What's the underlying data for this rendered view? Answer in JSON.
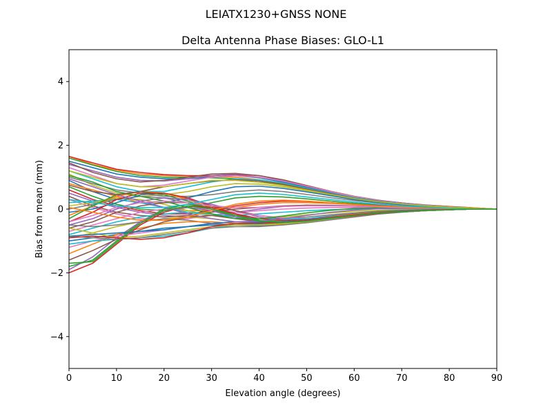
{
  "chart_data": {
    "type": "line",
    "suptitle": "LEIATX1230+GNSS NONE",
    "title": "Delta Antenna Phase Biases: GLO-L1",
    "xlabel": "Elevation angle (degrees)",
    "ylabel": "Bias from mean (mm)",
    "xlim": [
      0,
      90
    ],
    "ylim": [
      -5,
      5
    ],
    "xticks": [
      0,
      10,
      20,
      30,
      40,
      50,
      60,
      70,
      80,
      90
    ],
    "yticks": [
      -4,
      -2,
      0,
      2,
      4
    ],
    "grid": false,
    "legend": "none",
    "x": [
      0,
      5,
      10,
      15,
      20,
      25,
      30,
      35,
      40,
      45,
      50,
      55,
      60,
      65,
      70,
      75,
      80,
      85,
      90
    ],
    "series": [
      {
        "color": "#ff7f0e",
        "values": [
          1.65,
          1.4,
          1.22,
          1.1,
          1.05,
          1.04,
          1.02,
          1.0,
          0.92,
          0.8,
          0.65,
          0.5,
          0.35,
          0.25,
          0.18,
          0.12,
          0.08,
          0.04,
          0.0
        ]
      },
      {
        "color": "#d62728",
        "values": [
          1.65,
          1.45,
          1.25,
          1.15,
          1.08,
          1.05,
          1.05,
          1.08,
          1.0,
          0.85,
          0.68,
          0.52,
          0.38,
          0.27,
          0.19,
          0.13,
          0.08,
          0.04,
          0.0
        ]
      },
      {
        "color": "#2ca02c",
        "values": [
          1.6,
          1.38,
          1.18,
          1.05,
          1.0,
          1.0,
          0.98,
          0.95,
          0.88,
          0.75,
          0.6,
          0.46,
          0.33,
          0.24,
          0.17,
          0.11,
          0.07,
          0.03,
          0.0
        ]
      },
      {
        "color": "#1f77b4",
        "values": [
          1.5,
          1.3,
          1.1,
          1.0,
          0.95,
          0.95,
          1.0,
          1.05,
          0.98,
          0.85,
          0.7,
          0.52,
          0.36,
          0.26,
          0.18,
          0.12,
          0.07,
          0.03,
          0.0
        ]
      },
      {
        "color": "#9467bd",
        "values": [
          1.4,
          1.2,
          1.0,
          0.9,
          0.88,
          0.95,
          1.05,
          1.1,
          1.05,
          0.9,
          0.72,
          0.55,
          0.38,
          0.27,
          0.19,
          0.12,
          0.07,
          0.03,
          0.0
        ]
      },
      {
        "color": "#8c564b",
        "values": [
          1.45,
          1.15,
          0.95,
          0.85,
          0.9,
          1.0,
          1.1,
          1.12,
          1.05,
          0.92,
          0.74,
          0.56,
          0.4,
          0.28,
          0.19,
          0.12,
          0.07,
          0.03,
          0.0
        ]
      },
      {
        "color": "#e377c2",
        "values": [
          1.3,
          1.05,
          0.8,
          0.7,
          0.75,
          0.88,
          1.0,
          1.05,
          1.0,
          0.88,
          0.72,
          0.55,
          0.39,
          0.27,
          0.18,
          0.12,
          0.07,
          0.03,
          0.0
        ]
      },
      {
        "color": "#17becf",
        "values": [
          1.2,
          0.95,
          0.7,
          0.55,
          0.55,
          0.7,
          0.85,
          0.95,
          0.92,
          0.82,
          0.66,
          0.5,
          0.36,
          0.25,
          0.17,
          0.11,
          0.06,
          0.03,
          0.0
        ]
      },
      {
        "color": "#bcbd22",
        "values": [
          1.1,
          0.75,
          0.5,
          0.4,
          0.45,
          0.55,
          0.7,
          0.8,
          0.78,
          0.7,
          0.58,
          0.45,
          0.32,
          0.23,
          0.16,
          0.1,
          0.06,
          0.03,
          0.0
        ]
      },
      {
        "color": "#7f7f7f",
        "values": [
          1.0,
          0.8,
          0.6,
          0.5,
          0.4,
          0.4,
          0.45,
          0.55,
          0.6,
          0.55,
          0.46,
          0.36,
          0.27,
          0.19,
          0.13,
          0.08,
          0.05,
          0.02,
          0.0
        ]
      },
      {
        "color": "#1f77b4",
        "values": [
          0.9,
          0.55,
          0.3,
          0.2,
          0.2,
          0.35,
          0.55,
          0.7,
          0.72,
          0.65,
          0.54,
          0.42,
          0.3,
          0.21,
          0.14,
          0.09,
          0.05,
          0.02,
          0.0
        ]
      },
      {
        "color": "#ff7f0e",
        "values": [
          0.8,
          0.6,
          0.4,
          0.2,
          0.05,
          -0.05,
          -0.05,
          0.05,
          0.15,
          0.2,
          0.2,
          0.18,
          0.14,
          0.1,
          0.07,
          0.05,
          0.03,
          0.01,
          0.0
        ]
      },
      {
        "color": "#2ca02c",
        "values": [
          0.7,
          0.4,
          0.15,
          0.0,
          -0.05,
          0.05,
          0.2,
          0.35,
          0.4,
          0.38,
          0.32,
          0.25,
          0.18,
          0.13,
          0.09,
          0.06,
          0.03,
          0.01,
          0.0
        ]
      },
      {
        "color": "#d62728",
        "values": [
          0.6,
          0.3,
          0.1,
          -0.05,
          -0.15,
          -0.15,
          -0.05,
          0.1,
          0.2,
          0.25,
          0.24,
          0.2,
          0.15,
          0.11,
          0.08,
          0.05,
          0.03,
          0.01,
          0.0
        ]
      },
      {
        "color": "#9467bd",
        "values": [
          0.5,
          0.25,
          0.05,
          -0.1,
          -0.2,
          -0.25,
          -0.2,
          -0.1,
          0.0,
          0.08,
          0.12,
          0.12,
          0.1,
          0.08,
          0.06,
          0.04,
          0.02,
          0.01,
          0.0
        ]
      },
      {
        "color": "#8c564b",
        "values": [
          0.4,
          0.1,
          -0.1,
          -0.2,
          -0.25,
          -0.2,
          -0.1,
          0.0,
          0.05,
          0.1,
          0.12,
          0.11,
          0.09,
          0.07,
          0.05,
          0.03,
          0.02,
          0.01,
          0.0
        ]
      },
      {
        "color": "#e377c2",
        "values": [
          0.3,
          0.05,
          -0.15,
          -0.3,
          -0.35,
          -0.3,
          -0.2,
          -0.1,
          -0.05,
          0.0,
          0.03,
          0.05,
          0.05,
          0.04,
          0.03,
          0.02,
          0.01,
          0.0,
          0.0
        ]
      },
      {
        "color": "#17becf",
        "values": [
          0.2,
          0.25,
          0.3,
          0.2,
          0.05,
          -0.1,
          -0.2,
          -0.2,
          -0.15,
          -0.1,
          -0.05,
          -0.02,
          0.0,
          0.01,
          0.01,
          0.01,
          0.0,
          0.0,
          0.0
        ]
      },
      {
        "color": "#bcbd22",
        "values": [
          0.1,
          0.2,
          0.35,
          0.3,
          0.15,
          -0.05,
          -0.2,
          -0.3,
          -0.3,
          -0.25,
          -0.18,
          -0.12,
          -0.07,
          -0.04,
          -0.02,
          -0.01,
          0.0,
          0.0,
          0.0
        ]
      },
      {
        "color": "#7f7f7f",
        "values": [
          0.0,
          0.15,
          0.3,
          0.4,
          0.35,
          0.2,
          0.0,
          -0.2,
          -0.3,
          -0.3,
          -0.25,
          -0.18,
          -0.12,
          -0.07,
          -0.04,
          -0.02,
          -0.01,
          0.0,
          0.0
        ]
      },
      {
        "color": "#1f77b4",
        "values": [
          -0.1,
          0.0,
          0.2,
          0.45,
          0.5,
          0.35,
          0.1,
          -0.15,
          -0.3,
          -0.35,
          -0.3,
          -0.22,
          -0.15,
          -0.09,
          -0.05,
          -0.03,
          -0.01,
          0.0,
          0.0
        ]
      },
      {
        "color": "#ff7f0e",
        "values": [
          -0.2,
          0.1,
          0.4,
          0.55,
          0.5,
          0.3,
          0.05,
          -0.2,
          -0.35,
          -0.38,
          -0.32,
          -0.24,
          -0.16,
          -0.1,
          -0.06,
          -0.03,
          -0.01,
          0.0,
          0.0
        ]
      },
      {
        "color": "#2ca02c",
        "values": [
          -0.3,
          0.1,
          0.45,
          0.55,
          0.45,
          0.25,
          0.0,
          -0.25,
          -0.4,
          -0.42,
          -0.35,
          -0.26,
          -0.18,
          -0.11,
          -0.06,
          -0.03,
          -0.01,
          0.0,
          0.0
        ]
      },
      {
        "color": "#d62728",
        "values": [
          -0.4,
          -0.1,
          0.3,
          0.5,
          0.5,
          0.35,
          0.1,
          -0.15,
          -0.35,
          -0.42,
          -0.38,
          -0.28,
          -0.19,
          -0.12,
          -0.07,
          -0.03,
          -0.01,
          0.0,
          0.0
        ]
      },
      {
        "color": "#9467bd",
        "values": [
          -0.5,
          -0.3,
          0.0,
          0.25,
          0.35,
          0.3,
          0.15,
          -0.05,
          -0.25,
          -0.35,
          -0.35,
          -0.28,
          -0.2,
          -0.13,
          -0.07,
          -0.04,
          -0.02,
          0.0,
          0.0
        ]
      },
      {
        "color": "#8c564b",
        "values": [
          -0.6,
          -0.4,
          -0.1,
          0.1,
          0.2,
          0.2,
          0.1,
          -0.05,
          -0.2,
          -0.3,
          -0.32,
          -0.27,
          -0.2,
          -0.13,
          -0.08,
          -0.04,
          -0.02,
          0.0,
          0.0
        ]
      },
      {
        "color": "#e377c2",
        "values": [
          -0.7,
          -0.5,
          -0.3,
          -0.1,
          0.0,
          0.05,
          0.0,
          -0.1,
          -0.2,
          -0.28,
          -0.3,
          -0.26,
          -0.19,
          -0.13,
          -0.08,
          -0.04,
          -0.02,
          0.0,
          0.0
        ]
      },
      {
        "color": "#17becf",
        "values": [
          -0.8,
          -0.6,
          -0.4,
          -0.25,
          -0.15,
          -0.1,
          -0.15,
          -0.25,
          -0.3,
          -0.32,
          -0.3,
          -0.25,
          -0.19,
          -0.13,
          -0.08,
          -0.04,
          -0.02,
          0.0,
          0.0
        ]
      },
      {
        "color": "#bcbd22",
        "values": [
          -0.9,
          -0.75,
          -0.55,
          -0.4,
          -0.3,
          -0.25,
          -0.3,
          -0.4,
          -0.45,
          -0.42,
          -0.36,
          -0.28,
          -0.21,
          -0.14,
          -0.09,
          -0.05,
          -0.02,
          0.0,
          0.0
        ]
      },
      {
        "color": "#7f7f7f",
        "values": [
          -0.5,
          -0.55,
          -0.5,
          -0.4,
          -0.3,
          -0.35,
          -0.45,
          -0.5,
          -0.5,
          -0.45,
          -0.38,
          -0.3,
          -0.22,
          -0.15,
          -0.09,
          -0.05,
          -0.02,
          0.0,
          0.0
        ]
      },
      {
        "color": "#1f77b4",
        "values": [
          -1.0,
          -0.9,
          -0.8,
          -0.7,
          -0.6,
          -0.55,
          -0.5,
          -0.5,
          -0.52,
          -0.48,
          -0.4,
          -0.32,
          -0.23,
          -0.15,
          -0.09,
          -0.05,
          -0.02,
          0.0,
          0.0
        ]
      },
      {
        "color": "#ff7f0e",
        "values": [
          -1.4,
          -1.1,
          -0.8,
          -0.6,
          -0.45,
          -0.4,
          -0.4,
          -0.45,
          -0.5,
          -0.48,
          -0.41,
          -0.32,
          -0.23,
          -0.15,
          -0.09,
          -0.05,
          -0.02,
          0.0,
          0.0
        ]
      },
      {
        "color": "#2ca02c",
        "values": [
          -1.8,
          -1.6,
          -1.0,
          -0.4,
          0.0,
          0.15,
          0.05,
          -0.2,
          -0.35,
          -0.4,
          -0.36,
          -0.28,
          -0.2,
          -0.13,
          -0.08,
          -0.04,
          -0.02,
          0.0,
          0.0
        ]
      },
      {
        "color": "#d62728",
        "values": [
          -2.0,
          -1.7,
          -1.1,
          -0.5,
          -0.1,
          0.1,
          0.05,
          -0.15,
          -0.3,
          -0.36,
          -0.33,
          -0.26,
          -0.18,
          -0.12,
          -0.07,
          -0.04,
          -0.02,
          0.0,
          0.0
        ]
      },
      {
        "color": "#9467bd",
        "values": [
          -1.9,
          -1.5,
          -0.9,
          -0.4,
          -0.05,
          0.05,
          -0.05,
          -0.25,
          -0.4,
          -0.45,
          -0.4,
          -0.31,
          -0.22,
          -0.14,
          -0.09,
          -0.05,
          -0.02,
          0.0,
          0.0
        ]
      },
      {
        "color": "#8c564b",
        "values": [
          -1.6,
          -1.3,
          -0.95,
          -0.65,
          -0.4,
          -0.25,
          -0.2,
          -0.3,
          -0.4,
          -0.42,
          -0.37,
          -0.29,
          -0.21,
          -0.14,
          -0.08,
          -0.04,
          -0.02,
          0.0,
          0.0
        ]
      },
      {
        "color": "#e377c2",
        "values": [
          -1.2,
          -1.0,
          -0.85,
          -0.75,
          -0.65,
          -0.55,
          -0.45,
          -0.4,
          -0.42,
          -0.4,
          -0.35,
          -0.28,
          -0.2,
          -0.13,
          -0.08,
          -0.04,
          -0.02,
          0.0,
          0.0
        ]
      },
      {
        "color": "#17becf",
        "values": [
          -1.1,
          -1.0,
          -0.95,
          -0.9,
          -0.85,
          -0.75,
          -0.6,
          -0.5,
          -0.48,
          -0.45,
          -0.4,
          -0.32,
          -0.23,
          -0.15,
          -0.09,
          -0.05,
          -0.02,
          0.0,
          0.0
        ]
      },
      {
        "color": "#bcbd22",
        "values": [
          -0.6,
          -0.75,
          -0.9,
          -0.85,
          -0.75,
          -0.65,
          -0.55,
          -0.5,
          -0.5,
          -0.46,
          -0.4,
          -0.32,
          -0.23,
          -0.15,
          -0.09,
          -0.05,
          -0.02,
          0.0,
          0.0
        ]
      },
      {
        "color": "#7f7f7f",
        "values": [
          -0.85,
          -0.9,
          -0.95,
          -0.9,
          -0.8,
          -0.7,
          -0.6,
          -0.55,
          -0.55,
          -0.5,
          -0.43,
          -0.34,
          -0.25,
          -0.16,
          -0.1,
          -0.05,
          -0.02,
          0.0,
          0.0
        ]
      },
      {
        "color": "#1f77b4",
        "values": [
          -0.85,
          -0.8,
          -0.75,
          -0.7,
          -0.65,
          -0.55,
          -0.45,
          -0.4,
          -0.42,
          -0.4,
          -0.35,
          -0.28,
          -0.2,
          -0.13,
          -0.08,
          -0.04,
          -0.02,
          0.0,
          0.0
        ]
      },
      {
        "color": "#d62728",
        "values": [
          -0.9,
          -0.85,
          -0.9,
          -0.95,
          -0.9,
          -0.75,
          -0.55,
          -0.45,
          -0.45,
          -0.42,
          -0.36,
          -0.29,
          -0.21,
          -0.14,
          -0.08,
          -0.04,
          -0.02,
          0.0,
          0.0
        ]
      },
      {
        "color": "#2ca02c",
        "values": [
          1.05,
          0.85,
          0.55,
          0.4,
          0.25,
          0.05,
          -0.15,
          -0.3,
          -0.3,
          -0.22,
          -0.12,
          -0.04,
          0.02,
          0.04,
          0.04,
          0.03,
          0.02,
          0.01,
          0.0
        ]
      },
      {
        "color": "#9467bd",
        "values": [
          0.95,
          0.7,
          0.45,
          0.25,
          0.05,
          -0.15,
          -0.3,
          -0.4,
          -0.38,
          -0.3,
          -0.2,
          -0.1,
          -0.03,
          0.01,
          0.02,
          0.02,
          0.01,
          0.0,
          0.0
        ]
      },
      {
        "color": "#e377c2",
        "values": [
          -0.4,
          -0.2,
          0.05,
          0.2,
          0.25,
          0.2,
          0.1,
          0.05,
          0.05,
          0.08,
          0.1,
          0.1,
          0.09,
          0.07,
          0.05,
          0.03,
          0.02,
          0.01,
          0.0
        ]
      },
      {
        "color": "#ff7f0e",
        "values": [
          0.05,
          -0.1,
          -0.25,
          -0.35,
          -0.35,
          -0.25,
          -0.05,
          0.15,
          0.25,
          0.28,
          0.25,
          0.2,
          0.15,
          0.1,
          0.07,
          0.04,
          0.02,
          0.01,
          0.0
        ]
      },
      {
        "color": "#17becf",
        "values": [
          0.3,
          0.2,
          0.1,
          0.05,
          0.05,
          0.15,
          0.3,
          0.45,
          0.5,
          0.46,
          0.38,
          0.3,
          0.22,
          0.15,
          0.1,
          0.06,
          0.03,
          0.01,
          0.0
        ]
      },
      {
        "color": "#8c564b",
        "values": [
          0.75,
          0.55,
          0.45,
          0.55,
          0.7,
          0.8,
          0.88,
          0.92,
          0.88,
          0.78,
          0.63,
          0.48,
          0.34,
          0.24,
          0.16,
          0.1,
          0.06,
          0.03,
          0.0
        ]
      },
      {
        "color": "#bcbd22",
        "values": [
          1.2,
          1.0,
          0.8,
          0.7,
          0.7,
          0.8,
          0.9,
          0.9,
          0.84,
          0.74,
          0.6,
          0.46,
          0.33,
          0.23,
          0.16,
          0.1,
          0.06,
          0.03,
          0.0
        ]
      },
      {
        "color": "#2ca02c",
        "values": [
          -1.7,
          -1.65,
          -1.05,
          -0.45,
          -0.05,
          0.1,
          0.0,
          -0.2,
          -0.38,
          -0.42,
          -0.38,
          -0.29,
          -0.2,
          -0.13,
          -0.08,
          -0.04,
          -0.02,
          0.0,
          0.0
        ]
      }
    ]
  }
}
